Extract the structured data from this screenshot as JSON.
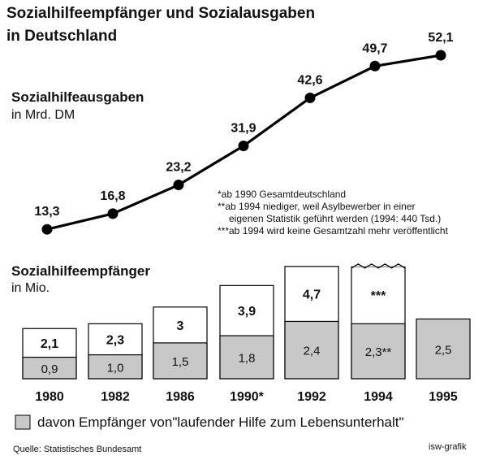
{
  "title_line1": "Sozialhilfeempfänger und Sozialausgaben",
  "title_line2": "in Deutschland",
  "chart_data": [
    {
      "type": "line",
      "title": "Sozialhilfeausgaben",
      "unit": "in Mrd. DM",
      "categories": [
        "1980",
        "1982",
        "1986",
        "1990",
        "1992",
        "1994",
        "1995"
      ],
      "values": [
        13.3,
        16.8,
        23.2,
        31.9,
        42.6,
        49.7,
        52.1
      ],
      "labels": [
        "13,3",
        "16,8",
        "23,2",
        "31,9",
        "42,6",
        "49,7",
        "52,1"
      ]
    },
    {
      "type": "bar",
      "stacked": true,
      "title": "Sozialhilfeempfänger",
      "unit": "in Mio.",
      "categories": [
        "1980",
        "1982",
        "1986",
        "1990*",
        "1992",
        "1994",
        "1995"
      ],
      "series": [
        {
          "name": "davon Empfänger von\"laufender Hilfe zum Lebensunterhalt\"",
          "values": [
            0.9,
            1.0,
            1.5,
            1.8,
            2.4,
            2.3,
            2.5
          ],
          "labels": [
            "0,9",
            "1,0",
            "1,5",
            "1,8",
            "2,4",
            "2,3**",
            "2,5"
          ],
          "color": "#c8c8c8"
        }
      ],
      "totals": [
        2.1,
        2.3,
        3,
        3.9,
        4.7,
        null,
        null
      ],
      "total_labels": [
        "2,1",
        "2,3",
        "3",
        "3,9",
        "4,7",
        "***",
        ""
      ],
      "total_box_values": [
        2.1,
        2.3,
        3,
        3.9,
        4.7,
        4.7,
        null
      ]
    }
  ],
  "footnotes": [
    "*ab 1990 Gesamtdeutschland",
    "**ab 1994 niediger, weil Asylbewerber in einer",
    "eigenen Statistik geführt werden (1994: 440 Tsd.)",
    "***ab 1994 wird keine Gesamtzahl mehr veröffentlicht"
  ],
  "legend_label": "davon Empfänger von\"laufender Hilfe zum Lebensunterhalt\"",
  "source": "Quelle: Statistisches Bundesamt",
  "credit": "isw-grafik",
  "colors": {
    "shaded": "#c8c8c8",
    "line": "#000000"
  }
}
